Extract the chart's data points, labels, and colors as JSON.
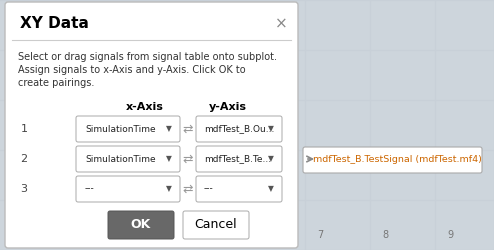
{
  "title": "XY Data",
  "close_symbol": "×",
  "description_lines": [
    "Select or drag signals from signal table onto subplot.",
    "Assign signals to x-Axis and y-Axis. Click OK to",
    "create pairings."
  ],
  "col_x_label": "x-Axis",
  "col_y_label": "y-Axis",
  "rows": [
    {
      "num": "1",
      "x_val": "SimulationTime",
      "y_val": "mdfTest_B.Ou..."
    },
    {
      "num": "2",
      "x_val": "SimulationTime",
      "y_val": "mdfTest_B.Te..."
    },
    {
      "num": "3",
      "x_val": "---",
      "y_val": "---"
    }
  ],
  "tooltip_text": "mdfTest_B.TestSignal (mdfTest.mf4)",
  "ok_label": "OK",
  "cancel_label": "Cancel",
  "dialog_bg": "#ffffff",
  "dialog_border": "#bbbbbb",
  "outer_bg": "#cdd5dc",
  "title_text_color": "#000000",
  "desc_text_color": "#333333",
  "header_text_color": "#000000",
  "row_num_color": "#444444",
  "dropdown_bg": "#ffffff",
  "dropdown_border": "#aaaaaa",
  "ok_btn_bg": "#686868",
  "ok_btn_text": "#ffffff",
  "cancel_btn_bg": "#ffffff",
  "cancel_btn_text": "#000000",
  "tooltip_bg": "#ffffff",
  "tooltip_border": "#aaaaaa",
  "tooltip_text_color": "#cc6600",
  "arrow_color": "#555555",
  "swap_arrow_color": "#999999",
  "grid_line_color": "#c8d0d8",
  "sep_line_color": "#cccccc",
  "figw": 4.94,
  "figh": 2.5,
  "dpi": 100
}
